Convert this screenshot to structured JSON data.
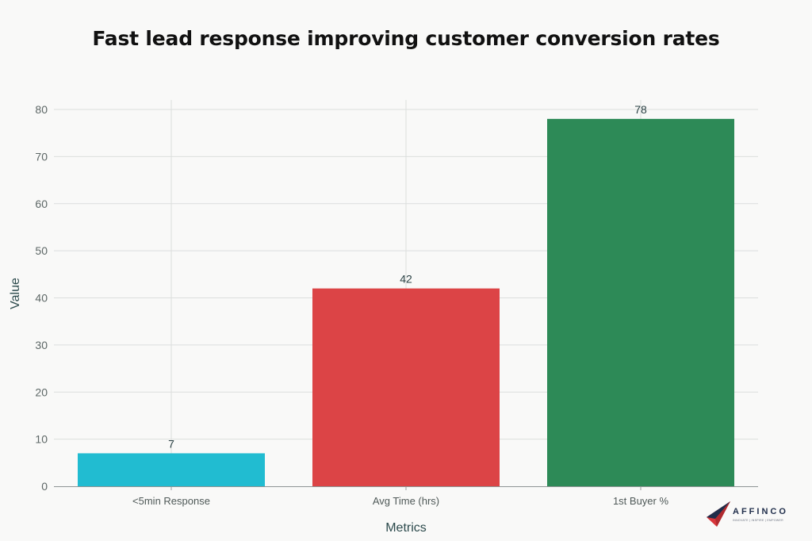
{
  "chart_data": {
    "type": "bar",
    "title": "Fast lead response improving customer conversion rates",
    "categories": [
      "<5min Response",
      "Avg Time (hrs)",
      "1st Buyer %"
    ],
    "values": [
      7,
      42,
      78
    ],
    "colors": [
      "#21bcd1",
      "#dc4446",
      "#2d8a57"
    ],
    "xlabel": "Metrics",
    "ylabel": "Value",
    "ylim": [
      0,
      80
    ],
    "yticks": [
      0,
      10,
      20,
      30,
      40,
      50,
      60,
      70,
      80
    ],
    "grid": true,
    "data_labels": true
  },
  "logo": {
    "name": "AFFINCO",
    "tagline": "INNOVATE | INSPIRE | EMPOWER",
    "colors": [
      "#d8363b",
      "#1f2d4a"
    ]
  }
}
